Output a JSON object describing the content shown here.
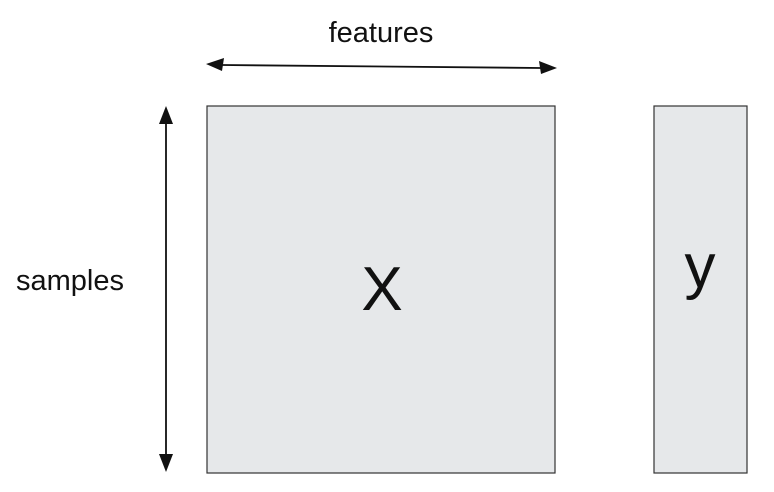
{
  "diagram": {
    "features_label": "features",
    "samples_label": "samples",
    "x_label": "X",
    "y_label": "y",
    "matrix_fill": "#e6e8ea",
    "matrix_stroke": "#333333",
    "arrow_color": "#111111"
  }
}
